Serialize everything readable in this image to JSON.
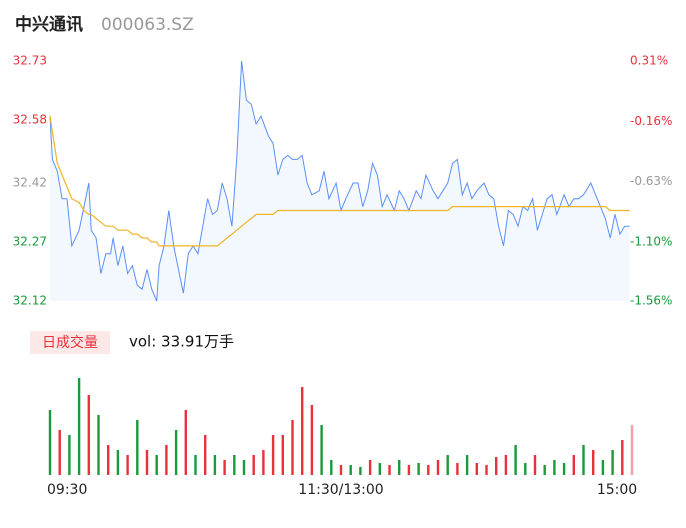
{
  "header": {
    "name": "中兴通讯",
    "code": "000063.SZ"
  },
  "chart_data": [
    {
      "type": "line",
      "x": [
        0,
        1,
        3,
        5,
        7,
        9,
        12,
        14,
        16,
        17,
        19,
        21,
        23,
        25,
        26,
        28,
        30,
        32,
        34,
        36,
        38,
        40,
        42,
        44,
        45,
        47,
        49,
        51,
        53,
        55,
        57,
        59,
        61,
        63,
        65,
        67,
        69,
        71,
        73,
        75,
        77,
        79,
        81,
        83,
        85,
        87,
        90,
        92,
        94,
        96,
        98,
        100,
        102,
        104,
        106,
        108,
        111,
        113,
        115,
        118,
        120,
        122,
        125,
        127,
        129,
        131,
        133,
        135,
        137,
        139,
        142,
        144,
        146,
        148,
        151,
        153,
        155,
        158,
        160,
        162,
        164,
        166,
        168,
        170,
        172,
        174,
        176,
        179,
        181,
        183,
        185,
        187,
        189,
        191,
        193,
        195,
        197,
        199,
        201,
        203,
        205,
        207,
        209,
        212,
        214,
        216,
        218,
        220,
        223,
        225,
        227,
        229,
        231,
        233,
        235,
        237,
        239
      ],
      "series": [
        {
          "color": "#5b8ff9",
          "values": [
            32.59,
            32.48,
            32.45,
            32.38,
            32.38,
            32.26,
            32.3,
            32.36,
            32.42,
            32.3,
            32.28,
            32.19,
            32.24,
            32.24,
            32.28,
            32.21,
            32.26,
            32.19,
            32.21,
            32.16,
            32.15,
            32.2,
            32.15,
            32.12,
            32.21,
            32.26,
            32.35,
            32.26,
            32.2,
            32.14,
            32.24,
            32.26,
            32.24,
            32.31,
            32.38,
            32.34,
            32.35,
            32.42,
            32.38,
            32.31,
            32.48,
            32.73,
            32.63,
            32.62,
            32.57,
            32.59,
            32.54,
            32.52,
            32.44,
            32.48,
            32.49,
            32.48,
            32.48,
            32.49,
            32.42,
            32.39,
            32.4,
            32.45,
            32.38,
            32.42,
            32.35,
            32.38,
            32.42,
            32.42,
            32.36,
            32.4,
            32.47,
            32.44,
            32.36,
            32.39,
            32.35,
            32.4,
            32.38,
            32.35,
            32.4,
            32.38,
            32.44,
            32.4,
            32.38,
            32.4,
            32.42,
            32.47,
            32.48,
            32.39,
            32.42,
            32.38,
            32.4,
            32.42,
            32.39,
            32.38,
            32.31,
            32.26,
            32.35,
            32.34,
            32.31,
            32.36,
            32.35,
            32.38,
            32.3,
            32.34,
            32.38,
            32.39,
            32.34,
            32.39,
            32.36,
            32.38,
            32.38,
            32.39,
            32.42,
            32.39,
            32.36,
            32.33,
            32.28,
            32.34,
            32.29,
            32.31,
            32.31
          ]
        },
        {
          "color": "#f0b429",
          "values": [
            32.59,
            32.55,
            32.47,
            32.44,
            32.41,
            32.38,
            32.37,
            32.35,
            32.34,
            32.34,
            32.33,
            32.32,
            32.31,
            32.31,
            32.31,
            32.3,
            32.3,
            32.3,
            32.29,
            32.29,
            32.28,
            32.28,
            32.27,
            32.27,
            32.26,
            32.26,
            32.26,
            32.26,
            32.26,
            32.26,
            32.26,
            32.26,
            32.26,
            32.26,
            32.26,
            32.26,
            32.26,
            32.27,
            32.28,
            32.29,
            32.3,
            32.31,
            32.32,
            32.33,
            32.34,
            32.34,
            32.34,
            32.34,
            32.35,
            32.35,
            32.35,
            32.35,
            32.35,
            32.35,
            32.35,
            32.35,
            32.35,
            32.35,
            32.35,
            32.35,
            32.35,
            32.35,
            32.35,
            32.35,
            32.35,
            32.35,
            32.35,
            32.35,
            32.35,
            32.35,
            32.35,
            32.35,
            32.35,
            32.35,
            32.35,
            32.35,
            32.35,
            32.35,
            32.35,
            32.35,
            32.35,
            32.36,
            32.36,
            32.36,
            32.36,
            32.36,
            32.36,
            32.36,
            32.36,
            32.36,
            32.36,
            32.36,
            32.36,
            32.36,
            32.36,
            32.36,
            32.36,
            32.36,
            32.36,
            32.36,
            32.36,
            32.36,
            32.36,
            32.36,
            32.36,
            32.36,
            32.36,
            32.36,
            32.36,
            32.36,
            32.36,
            32.36,
            32.35,
            32.35,
            32.35,
            32.35,
            32.35
          ]
        }
      ],
      "xlim": [
        0,
        240
      ],
      "ylim": [
        32.12,
        32.73
      ],
      "yticks": [
        32.73,
        32.58,
        32.42,
        32.27,
        32.12
      ],
      "y2lim": [
        -1.56,
        0.31
      ],
      "y2ticks": [
        {
          "value": 0.31,
          "label": "0.31%"
        },
        {
          "value": -0.16,
          "label": "-0.16%"
        },
        {
          "value": -0.63,
          "label": "-0.63%"
        },
        {
          "value": -1.1,
          "label": "-1.10%"
        },
        {
          "value": -1.56,
          "label": "-1.56%"
        }
      ],
      "up_color": "#e8313a",
      "flat_color": "#999999",
      "down_color": "#1a9a3a"
    },
    {
      "type": "bar",
      "tab": "日成交量",
      "volume_label": "vol: 33.91万手",
      "x": [
        0,
        4,
        8,
        12,
        16,
        20,
        24,
        28,
        32,
        36,
        40,
        44,
        48,
        52,
        56,
        60,
        64,
        68,
        72,
        76,
        80,
        84,
        88,
        92,
        96,
        100,
        104,
        108,
        112,
        116,
        120,
        124,
        128,
        132,
        136,
        140,
        144,
        148,
        152,
        156,
        160,
        164,
        168,
        172,
        176,
        180,
        184,
        188,
        192,
        196,
        200,
        204,
        208,
        212,
        216,
        220,
        224,
        228,
        232,
        236,
        240
      ],
      "values": [
        65,
        45,
        40,
        97,
        80,
        60,
        30,
        25,
        20,
        55,
        25,
        20,
        30,
        45,
        65,
        20,
        40,
        20,
        15,
        20,
        15,
        20,
        25,
        40,
        40,
        55,
        88,
        70,
        50,
        15,
        10,
        10,
        8,
        15,
        12,
        10,
        15,
        10,
        12,
        10,
        15,
        20,
        12,
        20,
        12,
        10,
        18,
        20,
        30,
        12,
        20,
        10,
        15,
        12,
        20,
        30,
        25,
        15,
        25,
        35,
        50
      ],
      "colors": [
        "#1a9a3a",
        "#e8313a",
        "#1a9a3a",
        "#1a9a3a",
        "#e8313a",
        "#1a9a3a",
        "#e8313a",
        "#1a9a3a",
        "#e8313a",
        "#1a9a3a",
        "#e8313a",
        "#1a9a3a",
        "#e8313a",
        "#1a9a3a",
        "#e8313a",
        "#1a9a3a",
        "#e8313a",
        "#1a9a3a",
        "#e8313a",
        "#1a9a3a",
        "#1a9a3a",
        "#e8313a",
        "#e8313a",
        "#e8313a",
        "#e8313a",
        "#e8313a",
        "#e8313a",
        "#e8313a",
        "#1a9a3a",
        "#1a9a3a",
        "#e8313a",
        "#1a9a3a",
        "#1a9a3a",
        "#e8313a",
        "#1a9a3a",
        "#e8313a",
        "#1a9a3a",
        "#e8313a",
        "#1a9a3a",
        "#e8313a",
        "#e8313a",
        "#1a9a3a",
        "#e8313a",
        "#1a9a3a",
        "#e8313a",
        "#e8313a",
        "#e8313a",
        "#e8313a",
        "#1a9a3a",
        "#1a9a3a",
        "#e8313a",
        "#1a9a3a",
        "#1a9a3a",
        "#1a9a3a",
        "#e8313a",
        "#1a9a3a",
        "#e8313a",
        "#1a9a3a",
        "#1a9a3a",
        "#e8313a",
        "#f4a0a3"
      ],
      "xlim": [
        0,
        240
      ],
      "ylim": [
        0,
        100
      ],
      "xticks": [
        {
          "value": 0,
          "label": "09:30"
        },
        {
          "value": 120,
          "label": "11:30/13:00"
        },
        {
          "value": 240,
          "label": "15:00"
        }
      ]
    }
  ]
}
